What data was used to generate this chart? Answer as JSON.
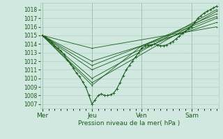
{
  "background_color": "#d0e8e0",
  "grid_color": "#a8ccbf",
  "line_color": "#1a5c1a",
  "tick_color": "#1a5c1a",
  "label_color": "#1a5c1a",
  "ylabel_ticks": [
    1007,
    1008,
    1009,
    1010,
    1011,
    1012,
    1013,
    1014,
    1015,
    1016,
    1017,
    1018
  ],
  "ylim": [
    1006.5,
    1018.8
  ],
  "xlabel": "Pression niveau de la mer( hPa )",
  "day_labels": [
    "Mer",
    "Jeu",
    "Ven",
    "Sam"
  ],
  "day_positions": [
    0,
    48,
    96,
    144
  ],
  "xlim": [
    -2,
    170
  ],
  "detailed_series": [
    0,
    1015,
    3,
    1014.8,
    6,
    1014.5,
    9,
    1014.2,
    12,
    1013.8,
    15,
    1013.5,
    18,
    1013.2,
    21,
    1012.8,
    24,
    1012.2,
    27,
    1011.7,
    30,
    1011.2,
    33,
    1010.6,
    36,
    1010.2,
    39,
    1009.6,
    42,
    1009.0,
    45,
    1008.0,
    48,
    1007.0,
    51,
    1007.5,
    54,
    1008.0,
    57,
    1008.2,
    60,
    1008.0,
    63,
    1008.0,
    66,
    1008.1,
    69,
    1008.3,
    72,
    1008.8,
    75,
    1009.5,
    78,
    1010.3,
    81,
    1011.0,
    84,
    1011.5,
    87,
    1012.0,
    90,
    1012.5,
    93,
    1013.0,
    96,
    1013.5,
    99,
    1013.8,
    102,
    1013.9,
    105,
    1013.9,
    108,
    1014.0,
    111,
    1013.9,
    114,
    1013.8,
    117,
    1013.8,
    120,
    1013.9,
    123,
    1014.1,
    126,
    1014.3,
    129,
    1014.6,
    132,
    1014.9,
    135,
    1015.2,
    138,
    1015.5,
    141,
    1015.8,
    144,
    1016.0,
    147,
    1016.5,
    150,
    1017.0,
    153,
    1017.3,
    156,
    1017.6,
    159,
    1017.8,
    162,
    1018.0,
    165,
    1018.2,
    168,
    1018.4
  ],
  "ensemble_lines": [
    [
      0,
      1015.0,
      48,
      1010.0,
      168,
      1018.0
    ],
    [
      0,
      1015.0,
      48,
      1009.5,
      168,
      1017.8
    ],
    [
      0,
      1015.0,
      48,
      1009.2,
      96,
      1013.8,
      168,
      1017.5
    ],
    [
      0,
      1015.0,
      48,
      1011.5,
      168,
      1017.2
    ],
    [
      0,
      1015.0,
      48,
      1011.0,
      168,
      1017.0
    ],
    [
      0,
      1015.0,
      48,
      1012.0,
      168,
      1016.5
    ],
    [
      0,
      1015.0,
      48,
      1013.5,
      168,
      1016.0
    ]
  ]
}
